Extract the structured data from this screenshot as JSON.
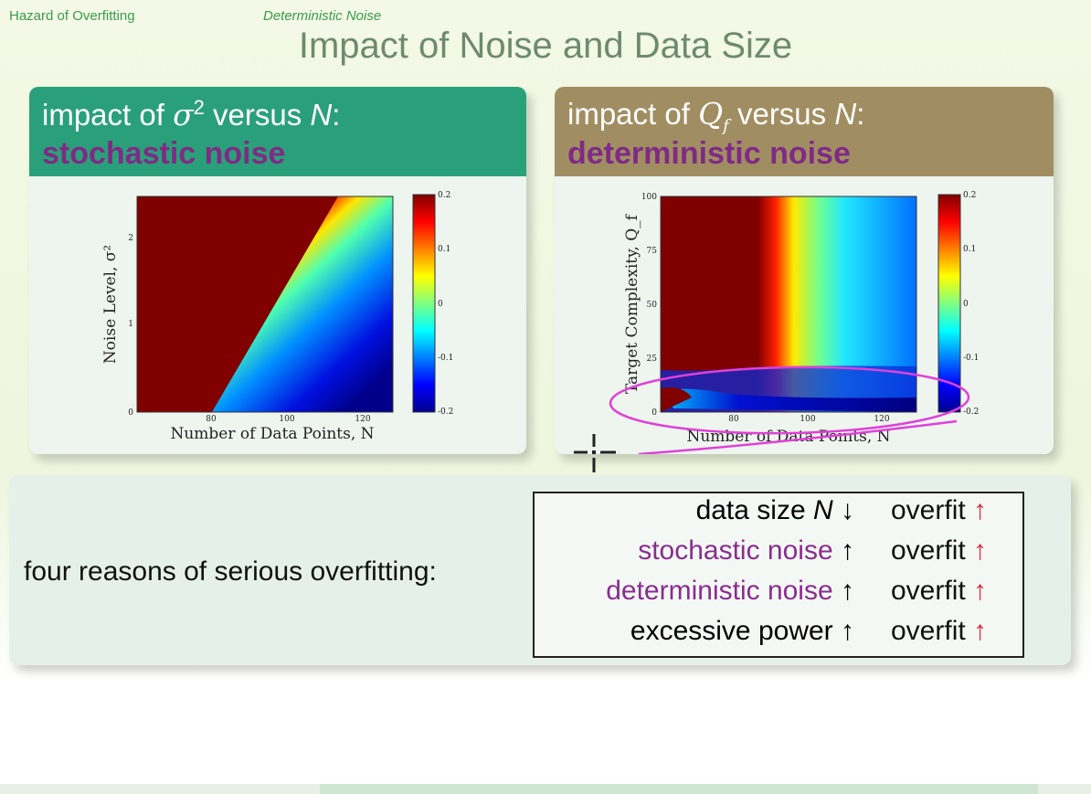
{
  "header": {
    "breadcrumb_left": "Hazard of Overfitting",
    "breadcrumb_right": "Deterministic Noise",
    "title": "Impact of Noise and Data Size"
  },
  "panel_left": {
    "title_prefix": "impact of ",
    "title_symbol": "σ",
    "title_sup": "2",
    "title_middle": " versus ",
    "title_var": "N",
    "title_suffix": ":",
    "subtitle": "stochastic noise",
    "accent_color": "#2aa07a"
  },
  "panel_right": {
    "title_prefix": "impact of ",
    "title_symbol": "Q",
    "title_sub": "f",
    "title_middle": " versus ",
    "title_var": "N",
    "title_suffix": ":",
    "subtitle": "deterministic noise",
    "accent_color": "#a08e62"
  },
  "chart_data": [
    {
      "type": "heatmap",
      "xlabel": "Number of Data Points, N",
      "ylabel": "Noise Level, σ²",
      "x_ticks": [
        "80",
        "100",
        "120"
      ],
      "y_ticks": [
        "0",
        "1",
        "2"
      ],
      "colorbar_ticks": [
        "0.2",
        "0.1",
        "0",
        "-0.1",
        "-0.2"
      ],
      "colorbar_range": [
        -0.2,
        0.2
      ],
      "colormap": "jet"
    },
    {
      "type": "heatmap",
      "xlabel": "Number of Data Points, N",
      "ylabel": "Target Complexity, Q_f",
      "x_ticks": [
        "80",
        "100",
        "120"
      ],
      "y_ticks": [
        "0",
        "25",
        "50",
        "75",
        "100"
      ],
      "colorbar_ticks": [
        "0.2",
        "0.1",
        "0",
        "-0.1",
        "-0.2"
      ],
      "colorbar_range": [
        -0.2,
        0.2
      ],
      "colormap": "jet"
    }
  ],
  "reasons": {
    "label": "four reasons of serious overfitting:",
    "rows": [
      {
        "cause_text": "data size ",
        "cause_var": "N",
        "cause_arrow": "↓",
        "effect": "overfit",
        "effect_arrow": "↑"
      },
      {
        "cause_text": "stochastic noise",
        "cause_var": "",
        "cause_arrow": "↑",
        "effect": "overfit",
        "effect_arrow": "↑"
      },
      {
        "cause_text": "deterministic noise",
        "cause_var": "",
        "cause_arrow": "↑",
        "effect": "overfit",
        "effect_arrow": "↑"
      },
      {
        "cause_text": "excessive power",
        "cause_var": "",
        "cause_arrow": "↑",
        "effect": "overfit",
        "effect_arrow": "↑"
      }
    ],
    "highlight_color": "#8a2c90",
    "arrow_color": "#e0283c"
  }
}
